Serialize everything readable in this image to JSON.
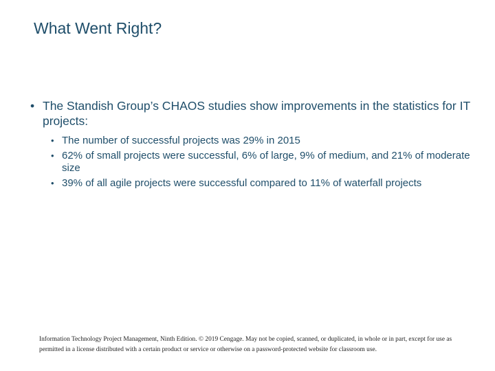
{
  "slide": {
    "title": "What Went Right?",
    "bullets": [
      {
        "bullet_icon": "bullet-dot",
        "text": "The Standish Group’s CHAOS studies show improvements in the statistics for IT projects:",
        "sub_bullets": [
          "The number of successful projects was 29% in 2015",
          "62% of small projects were successful, 6% of large, 9% of medium, and 21% of moderate size",
          "39% of all agile projects were successful compared to 11% of waterfall projects"
        ]
      }
    ],
    "footer": "Information Technology Project Management, Ninth Edition. © 2019 Cengage. May not be copied, scanned, or duplicated, in whole or in part, except for use as permitted in a license distributed with a certain product or service or otherwise on a password-protected website for classroom use.",
    "colors": {
      "text": "#1f4e6a",
      "footer_text": "#222222",
      "background": "#ffffff"
    }
  }
}
